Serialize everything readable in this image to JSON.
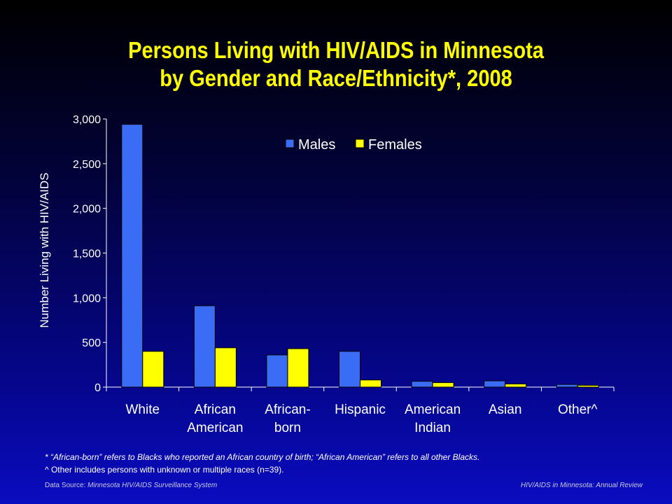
{
  "title_line1": "Persons Living with HIV/AIDS in Minnesota",
  "title_line2": "by Gender and Race/Ethnicity*, 2008",
  "footnote1": "* “African-born” refers to Blacks who reported  an African country of birth; “African American” refers to all other Blacks.",
  "footnote2": "^ Other includes persons with unknown or multiple races (n=39).",
  "footer_left_label": "Data Source:",
  "footer_left_source": "Minnesota HIV/AIDS Surveillance  System",
  "footer_right": "HIV/AIDS in Minnesota: Annual Review",
  "colors": {
    "males": "#3a6cf5",
    "females": "#ffff00",
    "title": "#ffff00",
    "axis": "#ffffff"
  },
  "chart_data": {
    "type": "bar",
    "title": "Persons Living with HIV/AIDS in Minnesota by Gender and Race/Ethnicity*, 2008",
    "ylabel": "Number Living with HIV/AIDS",
    "xlabel": "",
    "ylim": [
      0,
      3000
    ],
    "yticks": [
      0,
      500,
      1000,
      1500,
      2000,
      2500,
      3000
    ],
    "ytick_labels": [
      "0",
      "500",
      "1,000",
      "1,500",
      "2,000",
      "2,500",
      "3,000"
    ],
    "categories": [
      [
        "White"
      ],
      [
        "African",
        "American"
      ],
      [
        "African-",
        "born"
      ],
      [
        "Hispanic"
      ],
      [
        "American",
        "Indian"
      ],
      [
        "Asian"
      ],
      [
        "Other^"
      ]
    ],
    "series": [
      {
        "name": "Males",
        "color": "#3a6cf5",
        "values": [
          2940,
          910,
          360,
          400,
          65,
          70,
          30
        ]
      },
      {
        "name": "Females",
        "color": "#ffff00",
        "values": [
          400,
          440,
          430,
          80,
          50,
          35,
          20
        ]
      }
    ],
    "legend_position": "top-center",
    "grid": false
  }
}
